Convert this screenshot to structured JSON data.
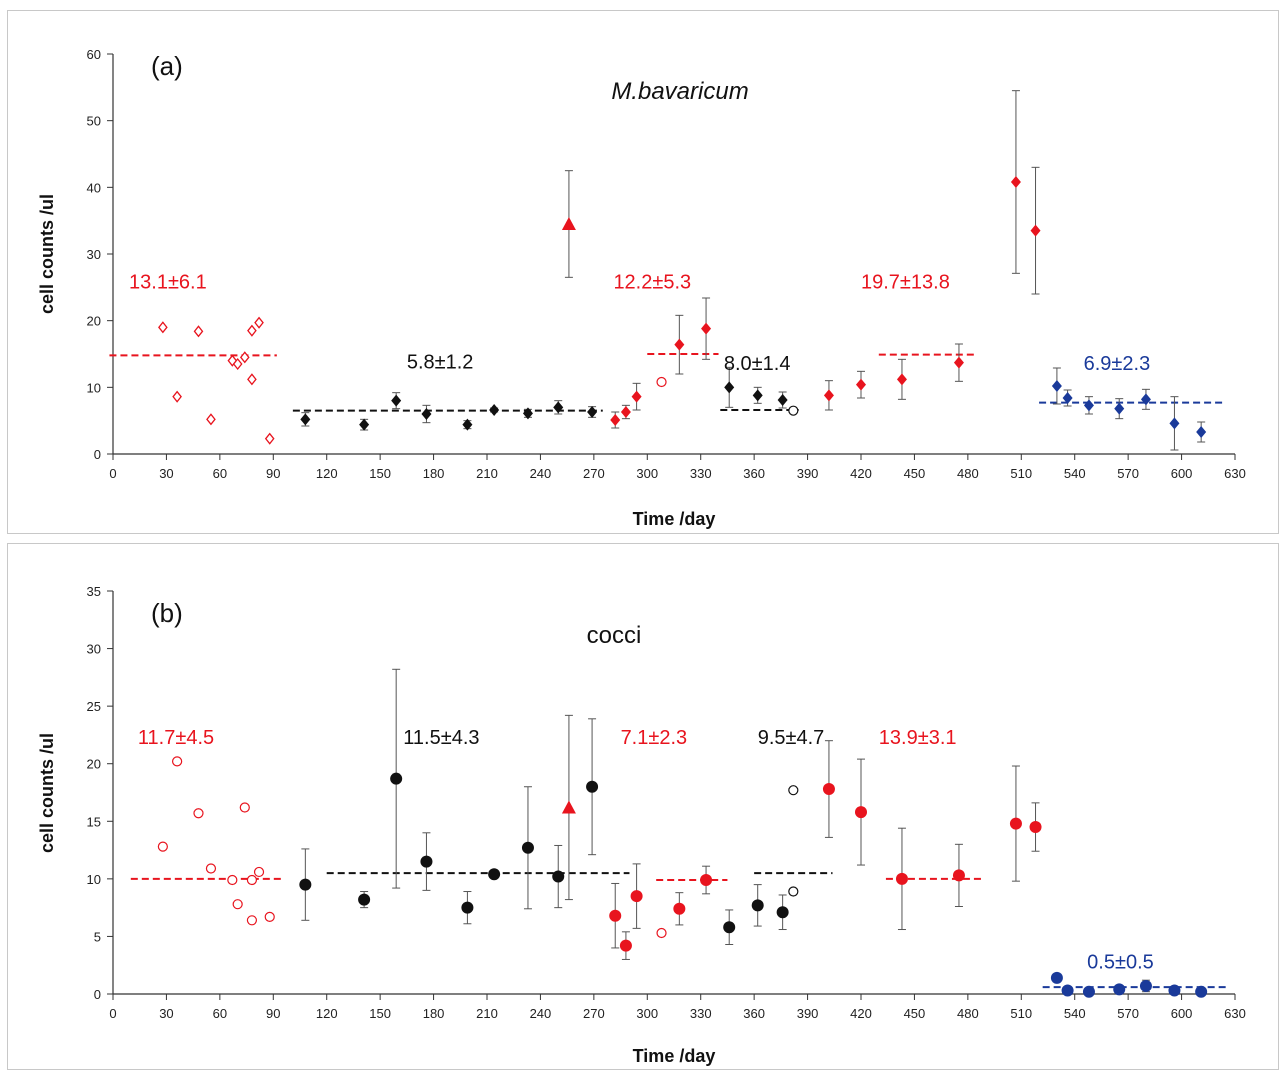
{
  "colors": {
    "red": "#e8141e",
    "black": "#111111",
    "blue": "#1a3a9a",
    "axis": "#333333",
    "errorbar": "#555555"
  },
  "chart_data": [
    {
      "type": "scatter",
      "panel_label": "(a)",
      "title": "M.bavaricum",
      "title_italic": true,
      "xlabel": "Time /day",
      "ylabel": "cell counts /ul",
      "xlim": [
        0,
        630
      ],
      "ylim": [
        0,
        60
      ],
      "xticks": [
        0,
        30,
        60,
        90,
        120,
        150,
        180,
        210,
        240,
        270,
        300,
        330,
        360,
        390,
        420,
        450,
        480,
        510,
        540,
        570,
        600,
        630
      ],
      "yticks": [
        0,
        10,
        20,
        30,
        40,
        50,
        60
      ],
      "grid": false,
      "series": [
        {
          "color": "red",
          "marker": "diamond-open",
          "points": [
            {
              "x": 28,
              "y": 19
            },
            {
              "x": 36,
              "y": 8.6
            },
            {
              "x": 48,
              "y": 18.4
            },
            {
              "x": 55,
              "y": 5.2
            },
            {
              "x": 67,
              "y": 14
            },
            {
              "x": 70,
              "y": 13.5
            },
            {
              "x": 74,
              "y": 14.5
            },
            {
              "x": 78,
              "y": 18.5
            },
            {
              "x": 78,
              "y": 11.2
            },
            {
              "x": 82,
              "y": 19.7
            },
            {
              "x": 88,
              "y": 2.3
            }
          ]
        },
        {
          "color": "black",
          "marker": "diamond",
          "points": [
            {
              "x": 108,
              "y": 5.2,
              "err": 1
            },
            {
              "x": 141,
              "y": 4.4,
              "err": 0.8
            },
            {
              "x": 159,
              "y": 8,
              "err": 1.2
            },
            {
              "x": 176,
              "y": 6,
              "err": 1.3
            },
            {
              "x": 199,
              "y": 4.4,
              "err": 0.6
            },
            {
              "x": 214,
              "y": 6.6,
              "err": 0.3
            },
            {
              "x": 233,
              "y": 6.1,
              "err": 0.6
            },
            {
              "x": 250,
              "y": 7,
              "err": 1
            },
            {
              "x": 269,
              "y": 6.3,
              "err": 0.8
            }
          ]
        },
        {
          "color": "red",
          "marker": "diamond",
          "points": [
            {
              "x": 282,
              "y": 5.1,
              "err": 1.2
            },
            {
              "x": 288,
              "y": 6.3,
              "err": 1
            },
            {
              "x": 294,
              "y": 8.6,
              "err": 2
            },
            {
              "x": 318,
              "y": 16.4,
              "err": 4.4
            },
            {
              "x": 333,
              "y": 18.8,
              "err": 4.6
            }
          ]
        },
        {
          "color": "red",
          "marker": "triangle",
          "points": [
            {
              "x": 256,
              "y": 34.5,
              "err": 8
            }
          ]
        },
        {
          "color": "red",
          "marker": "circle-open",
          "points": [
            {
              "x": 308,
              "y": 10.8
            }
          ]
        },
        {
          "color": "black",
          "marker": "diamond",
          "points": [
            {
              "x": 346,
              "y": 10,
              "err": 3
            },
            {
              "x": 362,
              "y": 8.8,
              "err": 1.2
            },
            {
              "x": 376,
              "y": 8.1,
              "err": 1.2
            }
          ]
        },
        {
          "color": "black",
          "marker": "circle-open",
          "points": [
            {
              "x": 382,
              "y": 6.5
            }
          ]
        },
        {
          "color": "red",
          "marker": "diamond",
          "points": [
            {
              "x": 402,
              "y": 8.8,
              "err": 2.2
            },
            {
              "x": 420,
              "y": 10.4,
              "err": 2
            },
            {
              "x": 443,
              "y": 11.2,
              "err": 3
            },
            {
              "x": 475,
              "y": 13.7,
              "err": 2.8
            },
            {
              "x": 507,
              "y": 40.8,
              "err": 13.7
            },
            {
              "x": 518,
              "y": 33.5,
              "err": 9.5
            }
          ]
        },
        {
          "color": "blue",
          "marker": "diamond",
          "points": [
            {
              "x": 530,
              "y": 10.2,
              "err": 2.7
            },
            {
              "x": 536,
              "y": 8.4,
              "err": 1.2
            },
            {
              "x": 548,
              "y": 7.3,
              "err": 1.3
            },
            {
              "x": 565,
              "y": 6.8,
              "err": 1.5
            },
            {
              "x": 580,
              "y": 8.2,
              "err": 1.5
            },
            {
              "x": 596,
              "y": 4.6,
              "err": 4
            },
            {
              "x": 611,
              "y": 3.3,
              "err": 1.5
            }
          ]
        }
      ],
      "mean_lines": [
        {
          "color": "red",
          "x1": -2,
          "x2": 92,
          "y": 14.8
        },
        {
          "color": "black",
          "x1": 101,
          "x2": 275,
          "y": 6.5
        },
        {
          "color": "red",
          "x1": 300,
          "x2": 340,
          "y": 15
        },
        {
          "color": "black",
          "x1": 341,
          "x2": 385,
          "y": 6.6
        },
        {
          "color": "red",
          "x1": 430,
          "x2": 485,
          "y": 14.9
        },
        {
          "color": "blue",
          "x1": 520,
          "x2": 624,
          "y": 7.7
        }
      ],
      "annotations": [
        {
          "text": "13.1±6.1",
          "color": "red",
          "x": 9,
          "y": 24.8
        },
        {
          "text": "5.8±1.2",
          "color": "black",
          "x": 165,
          "y": 12.8
        },
        {
          "text": "12.2±5.3",
          "color": "red",
          "x": 281,
          "y": 24.8
        },
        {
          "text": "8.0±1.4",
          "color": "black",
          "x": 343,
          "y": 12.6
        },
        {
          "text": "19.7±13.8",
          "color": "red",
          "x": 420,
          "y": 24.8
        },
        {
          "text": "6.9±2.3",
          "color": "blue",
          "x": 545,
          "y": 12.6
        }
      ]
    },
    {
      "type": "scatter",
      "panel_label": "(b)",
      "title": "cocci",
      "title_italic": false,
      "xlabel": "Time /day",
      "ylabel": "cell counts /ul",
      "xlim": [
        0,
        630
      ],
      "ylim": [
        0,
        35
      ],
      "xticks": [
        0,
        30,
        60,
        90,
        120,
        150,
        180,
        210,
        240,
        270,
        300,
        330,
        360,
        390,
        420,
        450,
        480,
        510,
        540,
        570,
        600,
        630
      ],
      "yticks": [
        0,
        5,
        10,
        15,
        20,
        25,
        30,
        35
      ],
      "grid": false,
      "series": [
        {
          "color": "red",
          "marker": "circle-open",
          "points": [
            {
              "x": 28,
              "y": 12.8
            },
            {
              "x": 36,
              "y": 20.2
            },
            {
              "x": 48,
              "y": 15.7
            },
            {
              "x": 55,
              "y": 10.9
            },
            {
              "x": 67,
              "y": 9.9
            },
            {
              "x": 70,
              "y": 7.8
            },
            {
              "x": 74,
              "y": 16.2
            },
            {
              "x": 78,
              "y": 6.4
            },
            {
              "x": 78,
              "y": 9.9
            },
            {
              "x": 82,
              "y": 10.6
            },
            {
              "x": 88,
              "y": 6.7
            }
          ]
        },
        {
          "color": "black",
          "marker": "circle",
          "points": [
            {
              "x": 108,
              "y": 9.5,
              "err": 3.1
            },
            {
              "x": 141,
              "y": 8.2,
              "err": 0.7
            },
            {
              "x": 159,
              "y": 18.7,
              "err": 9.5
            },
            {
              "x": 176,
              "y": 11.5,
              "err": 2.5
            },
            {
              "x": 199,
              "y": 7.5,
              "err": 1.4
            },
            {
              "x": 214,
              "y": 10.4,
              "err": 0.2
            },
            {
              "x": 233,
              "y": 12.7,
              "err": 5.3
            },
            {
              "x": 250,
              "y": 10.2,
              "err": 2.7
            },
            {
              "x": 269,
              "y": 18,
              "err": 5.9
            }
          ]
        },
        {
          "color": "red",
          "marker": "triangle",
          "points": [
            {
              "x": 256,
              "y": 16.2,
              "err": 8
            }
          ]
        },
        {
          "color": "red",
          "marker": "circle",
          "points": [
            {
              "x": 282,
              "y": 6.8,
              "err": 2.8
            },
            {
              "x": 288,
              "y": 4.2,
              "err": 1.2
            },
            {
              "x": 294,
              "y": 8.5,
              "err": 2.8
            },
            {
              "x": 318,
              "y": 7.4,
              "err": 1.4
            },
            {
              "x": 333,
              "y": 9.9,
              "err": 1.2
            }
          ]
        },
        {
          "color": "red",
          "marker": "circle-open",
          "points": [
            {
              "x": 308,
              "y": 5.3
            }
          ]
        },
        {
          "color": "black",
          "marker": "circle",
          "points": [
            {
              "x": 346,
              "y": 5.8,
              "err": 1.5
            },
            {
              "x": 362,
              "y": 7.7,
              "err": 1.8
            },
            {
              "x": 376,
              "y": 7.1,
              "err": 1.5
            }
          ]
        },
        {
          "color": "black",
          "marker": "circle-open",
          "points": [
            {
              "x": 382,
              "y": 17.7
            },
            {
              "x": 382,
              "y": 8.9
            }
          ]
        },
        {
          "color": "red",
          "marker": "circle",
          "points": [
            {
              "x": 402,
              "y": 17.8,
              "err": 4.2
            },
            {
              "x": 420,
              "y": 15.8,
              "err": 4.6
            },
            {
              "x": 443,
              "y": 10,
              "err": 4.4
            },
            {
              "x": 475,
              "y": 10.3,
              "err": 2.7
            },
            {
              "x": 507,
              "y": 14.8,
              "err": 5
            },
            {
              "x": 518,
              "y": 14.5,
              "err": 2.1
            }
          ]
        },
        {
          "color": "blue",
          "marker": "circle",
          "points": [
            {
              "x": 530,
              "y": 1.4,
              "err": 0.1
            },
            {
              "x": 536,
              "y": 0.3,
              "err": 0.1
            },
            {
              "x": 548,
              "y": 0.2,
              "err": 0.1
            },
            {
              "x": 565,
              "y": 0.4,
              "err": 0.2
            },
            {
              "x": 580,
              "y": 0.7,
              "err": 0.5
            },
            {
              "x": 596,
              "y": 0.3,
              "err": 0.1
            },
            {
              "x": 611,
              "y": 0.2,
              "err": 0.1
            }
          ]
        }
      ],
      "mean_lines": [
        {
          "color": "red",
          "x1": 10,
          "x2": 96,
          "y": 10
        },
        {
          "color": "black",
          "x1": 120,
          "x2": 290,
          "y": 10.5
        },
        {
          "color": "red",
          "x1": 305,
          "x2": 345,
          "y": 9.9
        },
        {
          "color": "black",
          "x1": 360,
          "x2": 404,
          "y": 10.5
        },
        {
          "color": "red",
          "x1": 434,
          "x2": 488,
          "y": 10
        },
        {
          "color": "blue",
          "x1": 522,
          "x2": 626,
          "y": 0.6
        }
      ],
      "annotations": [
        {
          "text": "11.7±4.5",
          "color": "red",
          "x": 14,
          "y": 21.7
        },
        {
          "text": "11.5±4.3",
          "color": "black",
          "x": 163,
          "y": 21.7
        },
        {
          "text": "7.1±2.3",
          "color": "red",
          "x": 285,
          "y": 21.7
        },
        {
          "text": "9.5±4.7",
          "color": "black",
          "x": 362,
          "y": 21.7
        },
        {
          "text": "13.9±3.1",
          "color": "red",
          "x": 430,
          "y": 21.7
        },
        {
          "text": "0.5±0.5",
          "color": "blue",
          "x": 547,
          "y": 2.2
        }
      ]
    }
  ]
}
